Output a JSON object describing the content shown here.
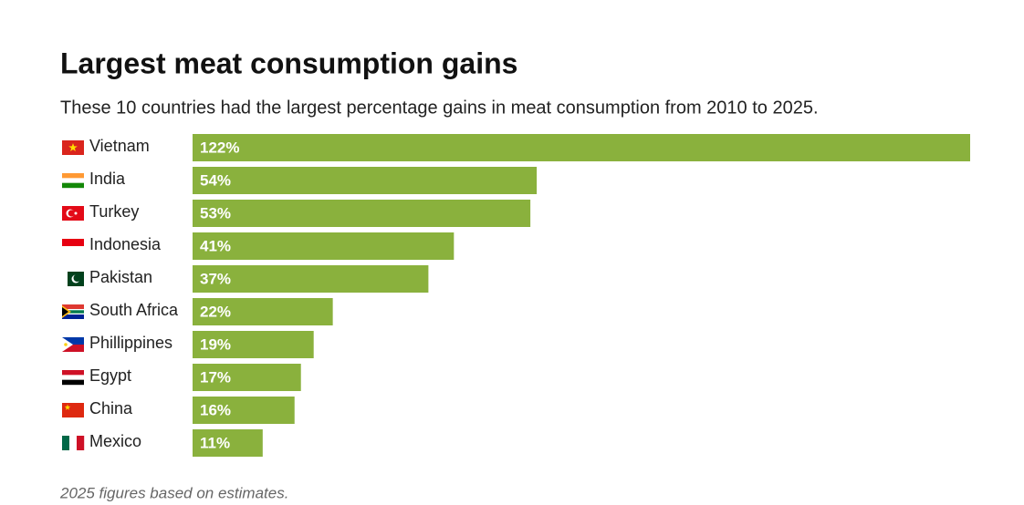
{
  "chart_data": {
    "type": "bar",
    "orientation": "horizontal",
    "title": "Largest meat consumption gains",
    "subtitle": "These 10 countries had the largest percentage gains in meat consumption from 2010 to 2025.",
    "categories": [
      "Vietnam",
      "India",
      "Turkey",
      "Indonesia",
      "Pakistan",
      "South Africa",
      "Phillippines",
      "Egypt",
      "China",
      "Mexico"
    ],
    "values": [
      122,
      54,
      53,
      41,
      37,
      22,
      19,
      17,
      16,
      11
    ],
    "value_labels": [
      "122%",
      "54%",
      "53%",
      "41%",
      "37%",
      "22%",
      "19%",
      "17%",
      "16%",
      "11%"
    ],
    "color": "#8ab13d",
    "note": "2025 figures based on estimates."
  }
}
